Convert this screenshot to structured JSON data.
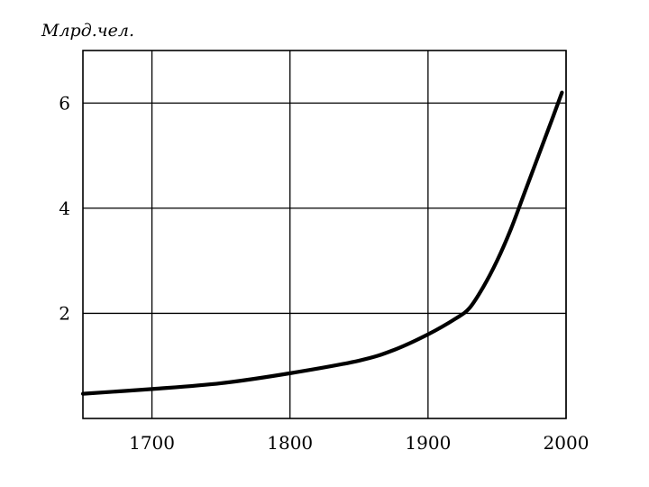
{
  "chart_data": {
    "type": "line",
    "title": "",
    "xlabel": "",
    "ylabel": "Млрд.чел.",
    "xlim": [
      1650,
      2000
    ],
    "ylim": [
      0,
      7
    ],
    "x_ticks": [
      {
        "value": 1700,
        "label": "1700"
      },
      {
        "value": 1800,
        "label": "1800"
      },
      {
        "value": 1900,
        "label": "1900"
      },
      {
        "value": 2000,
        "label": "2000"
      }
    ],
    "y_ticks": [
      {
        "value": 2,
        "label": "2"
      },
      {
        "value": 4,
        "label": "4"
      },
      {
        "value": 6,
        "label": "6"
      }
    ],
    "grid": true,
    "series": [
      {
        "values": [
          {
            "x": 1650,
            "y": 0.47
          },
          {
            "x": 1700,
            "y": 0.56
          },
          {
            "x": 1750,
            "y": 0.67
          },
          {
            "x": 1800,
            "y": 0.86
          },
          {
            "x": 1850,
            "y": 1.1
          },
          {
            "x": 1875,
            "y": 1.3
          },
          {
            "x": 1900,
            "y": 1.6
          },
          {
            "x": 1920,
            "y": 1.9
          },
          {
            "x": 1930,
            "y": 2.1
          },
          {
            "x": 1940,
            "y": 2.5
          },
          {
            "x": 1950,
            "y": 3.0
          },
          {
            "x": 1960,
            "y": 3.6
          },
          {
            "x": 1970,
            "y": 4.3
          },
          {
            "x": 1980,
            "y": 5.0
          },
          {
            "x": 1990,
            "y": 5.7
          },
          {
            "x": 1997,
            "y": 6.2
          }
        ]
      }
    ]
  }
}
